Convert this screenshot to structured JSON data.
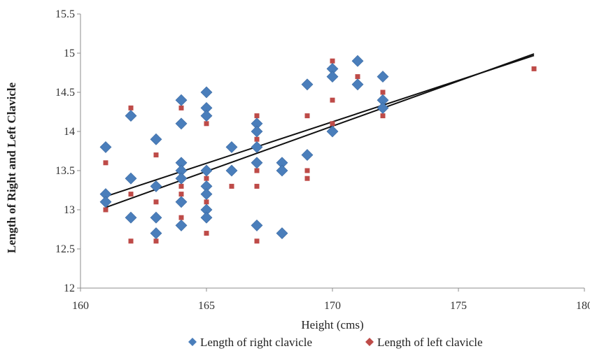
{
  "chart_data": {
    "type": "scatter",
    "xlabel": "Height (cms)",
    "ylabel": "Length of Right and Left Clavicle",
    "xlim": [
      160,
      180
    ],
    "ylim": [
      12,
      15.5
    ],
    "xticks": [
      160,
      165,
      170,
      175,
      180
    ],
    "yticks": [
      12,
      12.5,
      13,
      13.5,
      14,
      14.5,
      15,
      15.5
    ],
    "xtick_labels": [
      "160",
      "165",
      "170",
      "175",
      "180"
    ],
    "ytick_labels": [
      "12",
      "12.5",
      "13",
      "13.5",
      "14",
      "14.5",
      "15",
      "15.5"
    ],
    "grid": false,
    "legend_position": "bottom",
    "series": [
      {
        "name": "Length of right clavicle",
        "color": "#4a7ebb",
        "marker": "diamond",
        "points": [
          [
            161,
            13.8
          ],
          [
            161,
            13.2
          ],
          [
            161,
            13.1
          ],
          [
            162,
            14.2
          ],
          [
            162,
            13.4
          ],
          [
            162,
            12.9
          ],
          [
            163,
            13.9
          ],
          [
            163,
            13.3
          ],
          [
            163,
            12.9
          ],
          [
            163,
            12.7
          ],
          [
            164,
            14.4
          ],
          [
            164,
            14.1
          ],
          [
            164,
            13.6
          ],
          [
            164,
            13.5
          ],
          [
            164,
            13.4
          ],
          [
            164,
            13.1
          ],
          [
            164,
            12.8
          ],
          [
            165,
            14.5
          ],
          [
            165,
            14.3
          ],
          [
            165,
            14.2
          ],
          [
            165,
            13.5
          ],
          [
            165,
            13.3
          ],
          [
            165,
            13.2
          ],
          [
            165,
            13.0
          ],
          [
            165,
            12.9
          ],
          [
            166,
            13.8
          ],
          [
            166,
            13.5
          ],
          [
            167,
            14.1
          ],
          [
            167,
            14.0
          ],
          [
            167,
            13.8
          ],
          [
            167,
            13.6
          ],
          [
            167,
            12.8
          ],
          [
            168,
            13.6
          ],
          [
            168,
            13.5
          ],
          [
            168,
            12.7
          ],
          [
            169,
            14.6
          ],
          [
            169,
            13.7
          ],
          [
            170,
            14.8
          ],
          [
            170,
            14.7
          ],
          [
            170,
            14.0
          ],
          [
            171,
            14.9
          ],
          [
            171,
            14.6
          ],
          [
            172,
            14.7
          ],
          [
            172,
            14.4
          ],
          [
            172,
            14.3
          ]
        ],
        "trendline": {
          "x": [
            161,
            178
          ],
          "y": [
            13.17,
            14.97
          ]
        }
      },
      {
        "name": "Length of left clavicle",
        "color": "#be4b48",
        "marker": "square",
        "points": [
          [
            161,
            13.6
          ],
          [
            161,
            13.0
          ],
          [
            162,
            14.3
          ],
          [
            162,
            13.2
          ],
          [
            162,
            12.6
          ],
          [
            163,
            13.7
          ],
          [
            163,
            13.3
          ],
          [
            163,
            13.1
          ],
          [
            163,
            12.7
          ],
          [
            163,
            12.6
          ],
          [
            164,
            14.3
          ],
          [
            164,
            13.5
          ],
          [
            164,
            13.3
          ],
          [
            164,
            13.2
          ],
          [
            164,
            12.9
          ],
          [
            164,
            12.8
          ],
          [
            165,
            14.3
          ],
          [
            165,
            14.1
          ],
          [
            165,
            13.5
          ],
          [
            165,
            13.4
          ],
          [
            165,
            13.1
          ],
          [
            165,
            12.7
          ],
          [
            166,
            13.5
          ],
          [
            166,
            13.3
          ],
          [
            167,
            14.2
          ],
          [
            167,
            14.1
          ],
          [
            167,
            13.9
          ],
          [
            167,
            13.5
          ],
          [
            167,
            13.3
          ],
          [
            167,
            12.6
          ],
          [
            168,
            13.6
          ],
          [
            168,
            13.5
          ],
          [
            168,
            12.7
          ],
          [
            169,
            14.2
          ],
          [
            169,
            13.5
          ],
          [
            169,
            13.4
          ],
          [
            170,
            14.9
          ],
          [
            170,
            14.4
          ],
          [
            170,
            14.1
          ],
          [
            171,
            14.7
          ],
          [
            172,
            14.5
          ],
          [
            172,
            14.2
          ],
          [
            178,
            14.8
          ]
        ],
        "trendline": {
          "x": [
            161,
            178
          ],
          "y": [
            13.03,
            14.99
          ]
        }
      }
    ]
  }
}
